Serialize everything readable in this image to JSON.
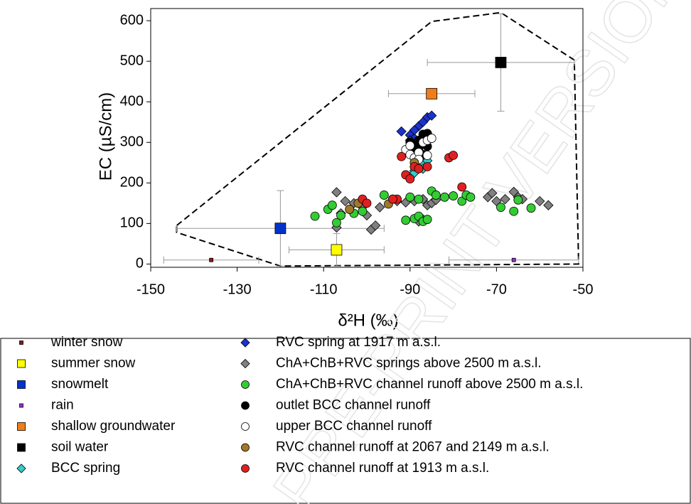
{
  "chart_data": {
    "type": "scatter",
    "x_label": "δ²H (‰)",
    "y_label": "EC (µS/cm)",
    "watermark": "PRE-PRINT VERSION",
    "xlim": [
      -150,
      -50
    ],
    "ylim": [
      -8,
      630
    ],
    "xticks": [
      -150,
      -130,
      -110,
      -90,
      -70,
      -50
    ],
    "yticks": [
      0,
      100,
      200,
      300,
      400,
      500,
      600
    ],
    "envelope": {
      "x": [
        -144,
        -85,
        -69,
        -52,
        -51,
        -120,
        -144,
        -144
      ],
      "y": [
        95,
        598,
        620,
        503,
        0,
        -5,
        78,
        95
      ]
    },
    "series": [
      {
        "name": "winter snow",
        "color": "#8b1a1a",
        "marker": "square",
        "size": 5,
        "x": [
          -136
        ],
        "y": [
          10
        ],
        "xerr": [
          11
        ]
      },
      {
        "name": "summer snow",
        "color": "#ffff00",
        "marker": "square",
        "size": 15,
        "x": [
          -107
        ],
        "y": [
          35
        ],
        "xerr": [
          11
        ],
        "yerr": [
          40
        ]
      },
      {
        "name": "snowmelt",
        "color": "#0033cc",
        "marker": "square",
        "size": 15,
        "x": [
          -120
        ],
        "y": [
          88
        ],
        "xerr": [
          24
        ],
        "yerr": [
          93
        ]
      },
      {
        "name": "rain",
        "color": "#9933cc",
        "marker": "square",
        "size": 5,
        "x": [
          -66
        ],
        "y": [
          10
        ],
        "xerr": [
          15
        ]
      },
      {
        "name": "shallow groundwater",
        "color": "#f07d1a",
        "marker": "square",
        "size": 15,
        "x": [
          -85
        ],
        "y": [
          420
        ],
        "xerr": [
          10
        ]
      },
      {
        "name": "soil water",
        "color": "#000000",
        "marker": "square",
        "size": 15,
        "x": [
          -69
        ],
        "y": [
          497
        ],
        "xerr": [
          17
        ],
        "yerr": [
          120
        ]
      },
      {
        "name": "BCC spring",
        "color": "#33cccc",
        "marker": "diamond",
        "size": 12,
        "x": [
          -89,
          -88,
          -87,
          -86,
          -89,
          -87
        ],
        "y": [
          230,
          240,
          250,
          255,
          225,
          235
        ]
      },
      {
        "name": "RVC spring at 1917 m a.s.l.",
        "color": "#1a33cc",
        "marker": "diamond",
        "size": 12,
        "x": [
          -92,
          -90,
          -89,
          -88,
          -87,
          -86,
          -85,
          -89,
          -90
        ],
        "y": [
          327,
          318,
          310,
          340,
          350,
          362,
          366,
          330,
          305
        ]
      },
      {
        "name": "ChA+ChB+RVC springs above 2500 m a.s.l.",
        "color": "#808080",
        "marker": "diamond",
        "size": 12,
        "x": [
          -107,
          -107,
          -106,
          -105,
          -103,
          -101,
          -100,
          -99,
          -98,
          -97,
          -93,
          -91,
          -89,
          -88,
          -87,
          -86,
          -85,
          -84,
          -87,
          -72,
          -71,
          -70,
          -66,
          -65,
          -64,
          -60,
          -58,
          -68
        ],
        "y": [
          177,
          90,
          125,
          155,
          150,
          140,
          120,
          85,
          95,
          140,
          155,
          152,
          155,
          105,
          160,
          145,
          150,
          158,
          110,
          165,
          175,
          155,
          178,
          165,
          160,
          155,
          145,
          160
        ]
      },
      {
        "name": "ChA+ChB+RVC channel runoff above 2500 m a.s.l.",
        "color": "#33cc33",
        "marker": "circle",
        "size": 12,
        "x": [
          -112,
          -109,
          -108,
          -107,
          -106,
          -103,
          -101,
          -96,
          -94,
          -91,
          -89,
          -88,
          -87,
          -86,
          -85,
          -84,
          -82,
          -80,
          -78,
          -77,
          -76,
          -69,
          -66,
          -65,
          -62,
          -90,
          -88
        ],
        "y": [
          118,
          135,
          145,
          102,
          120,
          125,
          130,
          170,
          160,
          108,
          112,
          118,
          105,
          110,
          180,
          170,
          165,
          168,
          155,
          170,
          165,
          140,
          130,
          158,
          138,
          165,
          160
        ]
      },
      {
        "name": "outlet BCC channel runoff",
        "color": "#000000",
        "marker": "circle",
        "size": 12,
        "x": [
          -90,
          -89,
          -88,
          -87,
          -86,
          -88,
          -86,
          -89,
          -87
        ],
        "y": [
          300,
          295,
          305,
          320,
          322,
          285,
          290,
          280,
          270
        ]
      },
      {
        "name": "upper BCC channel runoff",
        "color": "#ffffff",
        "marker": "circle",
        "size": 12,
        "x": [
          -91,
          -90,
          -89,
          -88,
          -87,
          -86,
          -85,
          -88,
          -86,
          -90
        ],
        "y": [
          282,
          270,
          262,
          275,
          300,
          305,
          310,
          258,
          268,
          292
        ]
      },
      {
        "name": "RVC channel runoff at 2067 and 2149 m a.s.l.",
        "color": "#a0782a",
        "marker": "circle",
        "size": 12,
        "x": [
          -104,
          -102,
          -95,
          -89
        ],
        "y": [
          135,
          150,
          148,
          250
        ]
      },
      {
        "name": "RVC channel runoff at 1913 m a.s.l.",
        "color": "#e02020",
        "marker": "circle",
        "size": 12,
        "x": [
          -101,
          -100,
          -93,
          -92,
          -91,
          -90,
          -89,
          -88,
          -86,
          -81,
          -80,
          -78,
          -94
        ],
        "y": [
          160,
          150,
          160,
          265,
          220,
          210,
          240,
          235,
          240,
          262,
          268,
          190,
          160
        ]
      }
    ]
  }
}
